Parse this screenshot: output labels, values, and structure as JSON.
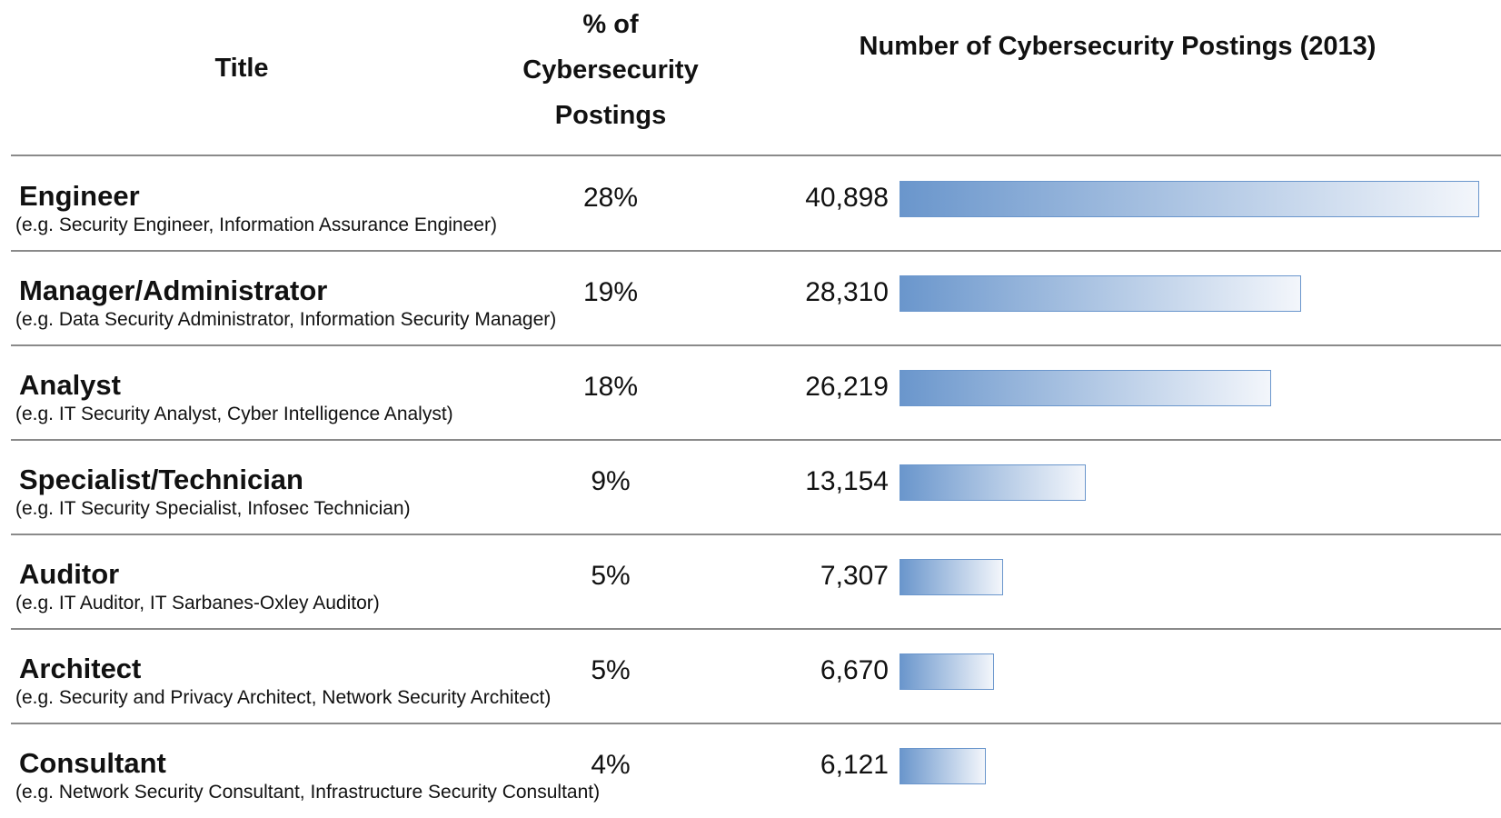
{
  "chart_data": {
    "type": "bar",
    "orientation": "horizontal",
    "column_headers": {
      "title": "Title",
      "percent": "% of Cybersecurity Postings",
      "count": "Number of Cybersecurity Postings (2013)"
    },
    "categories": [
      "Engineer",
      "Manager/Administrator",
      "Analyst",
      "Specialist/Technician",
      "Auditor",
      "Architect",
      "Consultant"
    ],
    "examples": [
      "(e.g. Security Engineer, Information Assurance Engineer)",
      "(e.g. Data Security Administrator, Information Security Manager)",
      "(e.g. IT Security Analyst, Cyber Intelligence Analyst)",
      "(e.g. IT Security Specialist, Infosec Technician)",
      "(e.g. IT Auditor, IT Sarbanes-Oxley Auditor)",
      "(e.g. Security and Privacy Architect, Network Security Architect)",
      "(e.g. Network Security Consultant, Infrastructure Security Consultant)"
    ],
    "percent": {
      "values": [
        28,
        19,
        18,
        9,
        5,
        5,
        4
      ],
      "value_labels": [
        "28%",
        "19%",
        "18%",
        "9%",
        "5%",
        "5%",
        "4%"
      ]
    },
    "values": [
      40898,
      28310,
      26219,
      13154,
      7307,
      6670,
      6121
    ],
    "value_labels": [
      "40,898",
      "28,310",
      "26,219",
      "13,154",
      "7,307",
      "6,670",
      "6,121"
    ],
    "color": "#6a96cc"
  }
}
